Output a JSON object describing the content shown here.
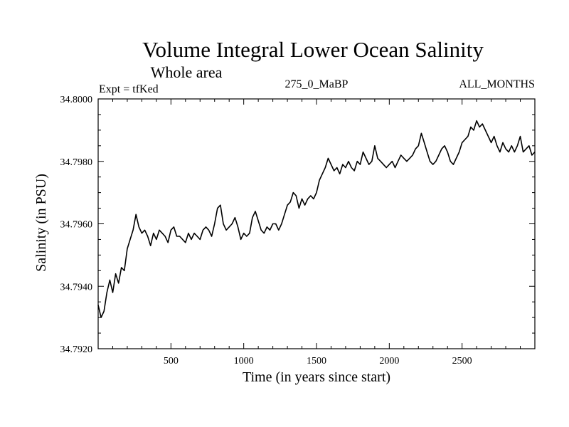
{
  "chart_data": {
    "type": "line",
    "title": "Volume Integral Lower Ocean Salinity",
    "subtitle": "Whole area",
    "annotations": {
      "left": "Expt = tfKed",
      "center": "275_0_MaBP",
      "right": "ALL_MONTHS"
    },
    "xlabel": "Time (in years since start)",
    "ylabel": "Salinity (in PSU)",
    "xlim": [
      0,
      3000
    ],
    "ylim": [
      34.792,
      34.8
    ],
    "x_ticks": [
      500,
      1000,
      1500,
      2000,
      2500
    ],
    "y_ticks": [
      "34.7920",
      "34.7940",
      "34.7960",
      "34.7980",
      "34.8000"
    ],
    "grid": false,
    "series": [
      {
        "color": "#000000",
        "points": [
          [
            0,
            34.7934
          ],
          [
            20,
            34.793
          ],
          [
            40,
            34.7932
          ],
          [
            60,
            34.7938
          ],
          [
            80,
            34.7942
          ],
          [
            100,
            34.7938
          ],
          [
            120,
            34.7944
          ],
          [
            140,
            34.7941
          ],
          [
            160,
            34.7946
          ],
          [
            180,
            34.7945
          ],
          [
            200,
            34.7952
          ],
          [
            220,
            34.7955
          ],
          [
            240,
            34.7958
          ],
          [
            260,
            34.7963
          ],
          [
            280,
            34.7959
          ],
          [
            300,
            34.7957
          ],
          [
            320,
            34.7958
          ],
          [
            340,
            34.7956
          ],
          [
            360,
            34.7953
          ],
          [
            380,
            34.7957
          ],
          [
            400,
            34.7955
          ],
          [
            420,
            34.7958
          ],
          [
            440,
            34.7957
          ],
          [
            460,
            34.7956
          ],
          [
            480,
            34.7954
          ],
          [
            500,
            34.7958
          ],
          [
            520,
            34.7959
          ],
          [
            540,
            34.7956
          ],
          [
            560,
            34.7956
          ],
          [
            580,
            34.7955
          ],
          [
            600,
            34.7954
          ],
          [
            620,
            34.7957
          ],
          [
            640,
            34.7955
          ],
          [
            660,
            34.7957
          ],
          [
            680,
            34.7956
          ],
          [
            700,
            34.7955
          ],
          [
            720,
            34.7958
          ],
          [
            740,
            34.7959
          ],
          [
            760,
            34.7958
          ],
          [
            780,
            34.7956
          ],
          [
            800,
            34.796
          ],
          [
            820,
            34.7965
          ],
          [
            840,
            34.7966
          ],
          [
            860,
            34.796
          ],
          [
            880,
            34.7958
          ],
          [
            900,
            34.7959
          ],
          [
            920,
            34.796
          ],
          [
            940,
            34.7962
          ],
          [
            960,
            34.7959
          ],
          [
            980,
            34.7955
          ],
          [
            1000,
            34.7957
          ],
          [
            1020,
            34.7956
          ],
          [
            1040,
            34.7957
          ],
          [
            1060,
            34.7962
          ],
          [
            1080,
            34.7964
          ],
          [
            1100,
            34.7961
          ],
          [
            1120,
            34.7958
          ],
          [
            1140,
            34.7957
          ],
          [
            1160,
            34.7959
          ],
          [
            1180,
            34.7958
          ],
          [
            1200,
            34.796
          ],
          [
            1220,
            34.796
          ],
          [
            1240,
            34.7958
          ],
          [
            1260,
            34.796
          ],
          [
            1280,
            34.7963
          ],
          [
            1300,
            34.7966
          ],
          [
            1320,
            34.7967
          ],
          [
            1340,
            34.797
          ],
          [
            1360,
            34.7969
          ],
          [
            1380,
            34.7965
          ],
          [
            1400,
            34.7968
          ],
          [
            1420,
            34.7966
          ],
          [
            1440,
            34.7968
          ],
          [
            1460,
            34.7969
          ],
          [
            1480,
            34.7968
          ],
          [
            1500,
            34.797
          ],
          [
            1520,
            34.7974
          ],
          [
            1540,
            34.7976
          ],
          [
            1560,
            34.7978
          ],
          [
            1580,
            34.7981
          ],
          [
            1600,
            34.7979
          ],
          [
            1620,
            34.7977
          ],
          [
            1640,
            34.7978
          ],
          [
            1660,
            34.7976
          ],
          [
            1680,
            34.7979
          ],
          [
            1700,
            34.7978
          ],
          [
            1720,
            34.798
          ],
          [
            1740,
            34.7978
          ],
          [
            1760,
            34.7977
          ],
          [
            1780,
            34.798
          ],
          [
            1800,
            34.7979
          ],
          [
            1820,
            34.7983
          ],
          [
            1840,
            34.7981
          ],
          [
            1860,
            34.7979
          ],
          [
            1880,
            34.798
          ],
          [
            1900,
            34.7985
          ],
          [
            1920,
            34.7981
          ],
          [
            1940,
            34.798
          ],
          [
            1960,
            34.7979
          ],
          [
            1980,
            34.7978
          ],
          [
            2000,
            34.7979
          ],
          [
            2020,
            34.798
          ],
          [
            2040,
            34.7978
          ],
          [
            2060,
            34.798
          ],
          [
            2080,
            34.7982
          ],
          [
            2100,
            34.7981
          ],
          [
            2120,
            34.798
          ],
          [
            2140,
            34.7981
          ],
          [
            2160,
            34.7982
          ],
          [
            2180,
            34.7984
          ],
          [
            2200,
            34.7985
          ],
          [
            2220,
            34.7989
          ],
          [
            2240,
            34.7986
          ],
          [
            2260,
            34.7983
          ],
          [
            2280,
            34.798
          ],
          [
            2300,
            34.7979
          ],
          [
            2320,
            34.798
          ],
          [
            2340,
            34.7982
          ],
          [
            2360,
            34.7984
          ],
          [
            2380,
            34.7985
          ],
          [
            2400,
            34.7983
          ],
          [
            2420,
            34.798
          ],
          [
            2440,
            34.7979
          ],
          [
            2460,
            34.7981
          ],
          [
            2480,
            34.7983
          ],
          [
            2500,
            34.7986
          ],
          [
            2520,
            34.7987
          ],
          [
            2540,
            34.7988
          ],
          [
            2560,
            34.7991
          ],
          [
            2580,
            34.799
          ],
          [
            2600,
            34.7993
          ],
          [
            2620,
            34.7991
          ],
          [
            2640,
            34.7992
          ],
          [
            2660,
            34.799
          ],
          [
            2680,
            34.7988
          ],
          [
            2700,
            34.7986
          ],
          [
            2720,
            34.7988
          ],
          [
            2740,
            34.7985
          ],
          [
            2760,
            34.7983
          ],
          [
            2780,
            34.7986
          ],
          [
            2800,
            34.7984
          ],
          [
            2820,
            34.7983
          ],
          [
            2840,
            34.7985
          ],
          [
            2860,
            34.7983
          ],
          [
            2880,
            34.7985
          ],
          [
            2900,
            34.7988
          ],
          [
            2920,
            34.7983
          ],
          [
            2940,
            34.7984
          ],
          [
            2960,
            34.7985
          ],
          [
            2980,
            34.7982
          ],
          [
            3000,
            34.7983
          ]
        ]
      }
    ]
  }
}
